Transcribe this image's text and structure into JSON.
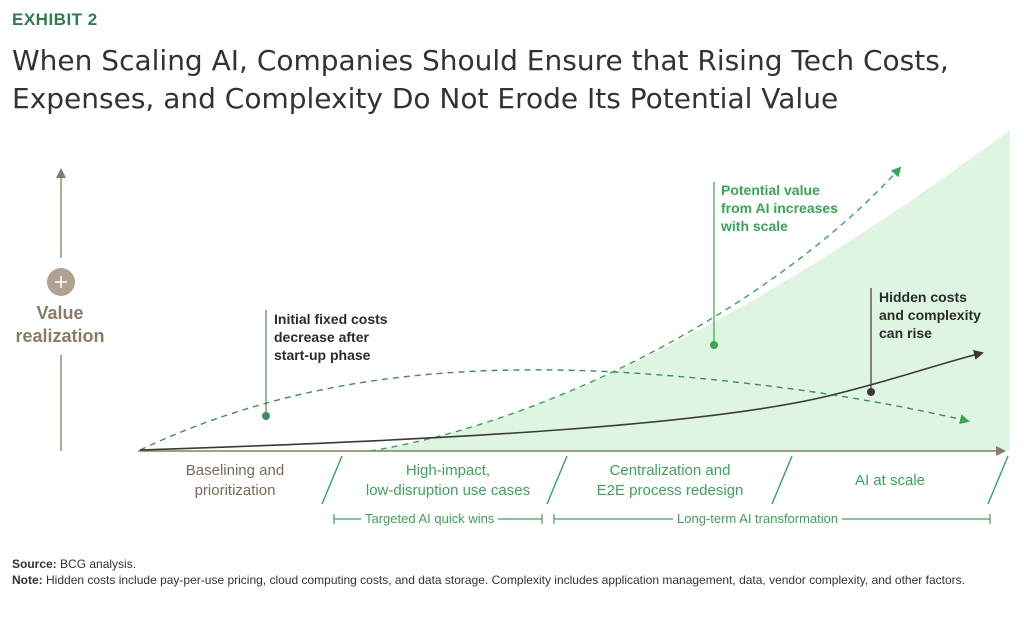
{
  "header": {
    "exhibit": "EXHIBIT 2",
    "title_line1": "When Scaling AI, Companies Should Ensure that Rising Tech Costs,",
    "title_line2": "Expenses, and Complexity Do Not Erode Its Potential Value"
  },
  "axis": {
    "y_label_line1": "Value",
    "y_label_line2": "realization",
    "y_icon": "plus-icon"
  },
  "annotations": {
    "fixed_costs": [
      "Initial fixed costs",
      "decrease after",
      "start-up phase"
    ],
    "potential_value": [
      "Potential value",
      "from AI increases",
      "with scale"
    ],
    "hidden_costs": [
      "Hidden costs",
      "and complexity",
      "can rise"
    ]
  },
  "phases": [
    {
      "line1": "Baselining and",
      "line2": "prioritization"
    },
    {
      "line1": "High-impact,",
      "line2": "low-disruption use cases"
    },
    {
      "line1": "Centralization and",
      "line2": "E2E process redesign"
    },
    {
      "line1": "AI at scale",
      "line2": ""
    }
  ],
  "brackets": {
    "quick_wins": "Targeted AI quick wins",
    "transformation": "Long-term AI transformation"
  },
  "footer": {
    "source_label": "Source:",
    "source_text": "BCG analysis.",
    "note_label": "Note:",
    "note_text": "Hidden costs include pay-per-use pricing, cloud computing costs, and data storage. Complexity includes application management, data, vendor complexity, and other factors."
  },
  "colors": {
    "green": "#34a853",
    "light_green_fill": "#def5e2",
    "dark": "#3a3a3a",
    "brown": "#8a7a66"
  }
}
